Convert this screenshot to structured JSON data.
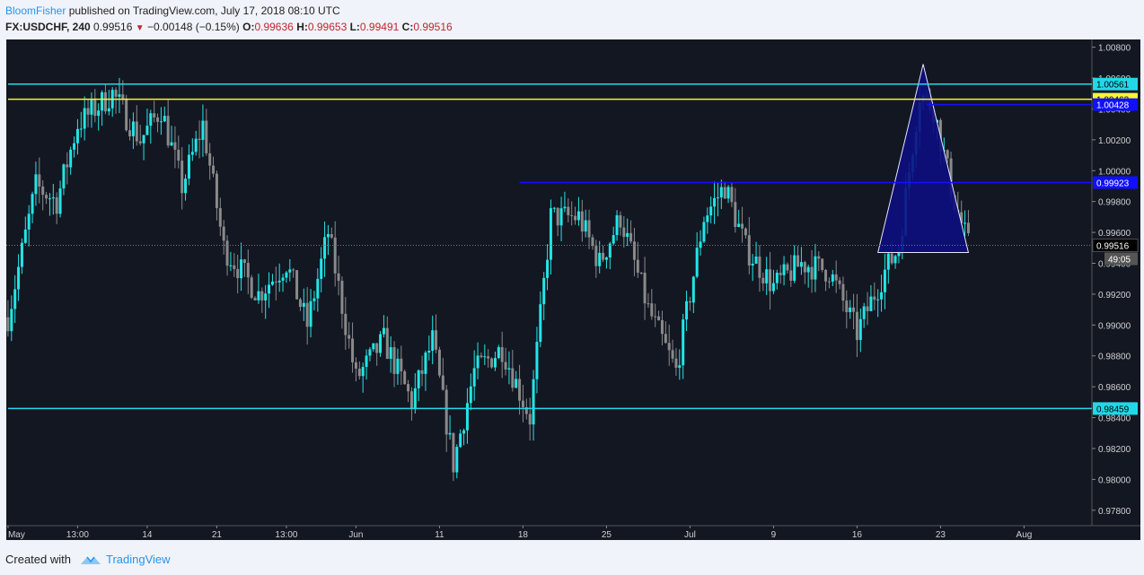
{
  "header": {
    "author": "BloomFisher",
    "published": " published on TradingView.com, July 17, 2018 08:10 UTC",
    "symbol": "FX:USDCHF, 240",
    "last": "0.99516",
    "change": "−0.00148 (−0.15%)",
    "o_label": "O:",
    "o_value": "0.99636",
    "h_label": "H:",
    "h_value": "0.99653",
    "l_label": "L:",
    "l_value": "0.99491",
    "c_label": "C:",
    "c_value": "0.99516"
  },
  "footer": {
    "created_with": "Created with",
    "brand": "TradingView"
  },
  "colors": {
    "background": "#131722",
    "bull": "#22e6e6",
    "bear": "#8a8a8a",
    "level_cyan": "#22d8e8",
    "level_yellow": "#f5f53a",
    "level_blue": "#1010ff",
    "triangle_fill": "#0d0d80",
    "triangle_stroke": "#e6e6ff"
  },
  "chart_data": {
    "type": "candlestick",
    "ylim": [
      0.977,
      1.0085
    ],
    "y_ticks": [
      "1.00800",
      "1.00600",
      "1.00400",
      "1.00200",
      "1.00000",
      "0.99800",
      "0.99600",
      "0.99400",
      "0.99200",
      "0.99000",
      "0.98800",
      "0.98600",
      "0.98400",
      "0.98200",
      "0.98000",
      "0.97800"
    ],
    "x_ticks": [
      "May",
      "13:00",
      "14",
      "21",
      "13:00",
      "Jun",
      "11",
      "18",
      "25",
      "Jul",
      "9",
      "16",
      "23",
      "Aug"
    ],
    "n_bars": 312,
    "x_tick_bar_index": [
      0,
      20,
      40,
      60,
      80,
      100,
      124,
      148,
      172,
      196,
      220,
      244,
      268,
      292
    ],
    "path_anchors": [
      [
        0,
        0.9905
      ],
      [
        8,
        0.999
      ],
      [
        14,
        0.998
      ],
      [
        20,
        1.003
      ],
      [
        30,
        1.005
      ],
      [
        38,
        1.002
      ],
      [
        44,
        1.004
      ],
      [
        50,
        0.999
      ],
      [
        56,
        1.003
      ],
      [
        62,
        0.995
      ],
      [
        72,
        0.992
      ],
      [
        80,
        0.994
      ],
      [
        86,
        0.99
      ],
      [
        92,
        0.996
      ],
      [
        100,
        0.9865
      ],
      [
        108,
        0.989
      ],
      [
        116,
        0.985
      ],
      [
        122,
        0.989
      ],
      [
        128,
        0.981
      ],
      [
        134,
        0.987
      ],
      [
        142,
        0.9885
      ],
      [
        150,
        0.984
      ],
      [
        156,
        0.997
      ],
      [
        164,
        0.997
      ],
      [
        170,
        0.994
      ],
      [
        176,
        0.997
      ],
      [
        184,
        0.991
      ],
      [
        192,
        0.987
      ],
      [
        200,
        0.997
      ],
      [
        206,
        0.999
      ],
      [
        212,
        0.995
      ],
      [
        220,
        0.9925
      ],
      [
        228,
        0.994
      ],
      [
        236,
        0.9935
      ],
      [
        244,
        0.9895
      ],
      [
        252,
        0.9935
      ],
      [
        256,
        0.995
      ],
      [
        262,
        1.005
      ],
      [
        266,
        1.004
      ],
      [
        272,
        0.998
      ],
      [
        276,
        0.99516
      ]
    ],
    "levels": [
      {
        "label": "1.00561",
        "value": 1.00561,
        "color": "#22d8e8",
        "label_bg": "#22d8e8",
        "label_fg": "#000000",
        "x_start_bar": 0
      },
      {
        "label": "1.00463",
        "value": 1.00463,
        "color": "#f5f53a",
        "label_bg": "#f5f53a",
        "label_fg": "#000000",
        "x_start_bar": 0
      },
      {
        "label": "1.00428",
        "value": 1.00428,
        "color": "#1010ff",
        "label_bg": "#1010ff",
        "label_fg": "#ffffff",
        "x_start_bar": 264
      },
      {
        "label": "0.99923",
        "value": 0.99923,
        "color": "#1010ff",
        "label_bg": "#1010ff",
        "label_fg": "#ffffff",
        "x_start_bar": 147
      },
      {
        "label": "0.98459",
        "value": 0.98459,
        "color": "#22d8e8",
        "label_bg": "#22d8e8",
        "label_fg": "#000000",
        "x_start_bar": 0
      }
    ],
    "current_price": {
      "label": "0.99516",
      "value": 0.99516
    },
    "countdown": "49:05",
    "triangle": {
      "apex": [
        263,
        1.0069
      ],
      "base_left": [
        250,
        0.9947
      ],
      "base_right": [
        276,
        0.9947
      ]
    }
  }
}
